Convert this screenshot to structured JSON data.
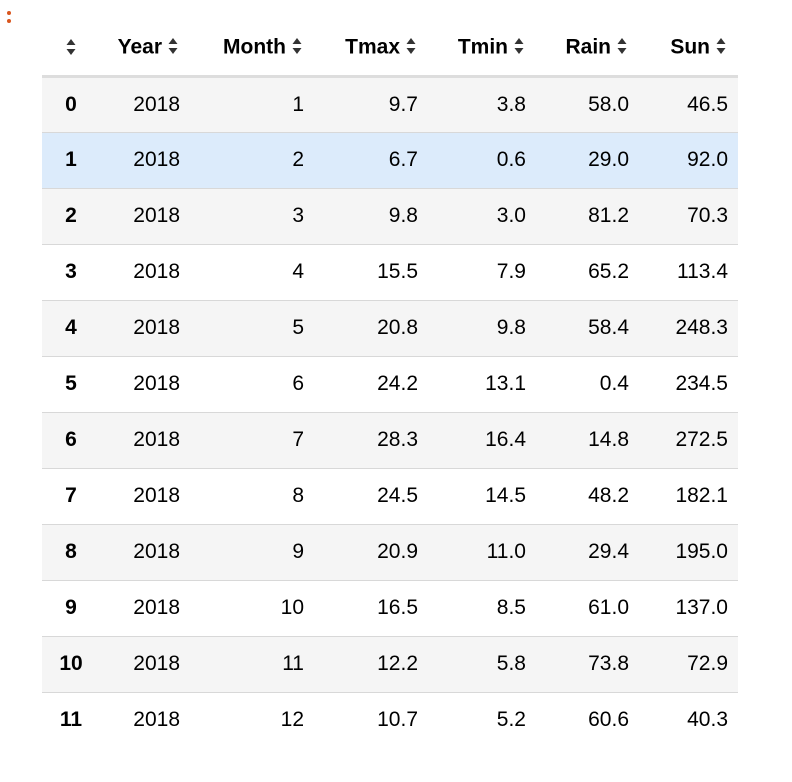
{
  "cell_menu_icon": "vertical-ellipsis-icon",
  "accent_color": "#d9561e",
  "hover_row_color": "#dcebfb",
  "sort_icon": "sort-updown-icon",
  "columns": [
    "Year",
    "Month",
    "Tmax",
    "Tmin",
    "Rain",
    "Sun"
  ],
  "hovered_row": 1,
  "rows": [
    {
      "index": "0",
      "cells": [
        "2018",
        "1",
        "9.7",
        "3.8",
        "58.0",
        "46.5"
      ]
    },
    {
      "index": "1",
      "cells": [
        "2018",
        "2",
        "6.7",
        "0.6",
        "29.0",
        "92.0"
      ]
    },
    {
      "index": "2",
      "cells": [
        "2018",
        "3",
        "9.8",
        "3.0",
        "81.2",
        "70.3"
      ]
    },
    {
      "index": "3",
      "cells": [
        "2018",
        "4",
        "15.5",
        "7.9",
        "65.2",
        "113.4"
      ]
    },
    {
      "index": "4",
      "cells": [
        "2018",
        "5",
        "20.8",
        "9.8",
        "58.4",
        "248.3"
      ]
    },
    {
      "index": "5",
      "cells": [
        "2018",
        "6",
        "24.2",
        "13.1",
        "0.4",
        "234.5"
      ]
    },
    {
      "index": "6",
      "cells": [
        "2018",
        "7",
        "28.3",
        "16.4",
        "14.8",
        "272.5"
      ]
    },
    {
      "index": "7",
      "cells": [
        "2018",
        "8",
        "24.5",
        "14.5",
        "48.2",
        "182.1"
      ]
    },
    {
      "index": "8",
      "cells": [
        "2018",
        "9",
        "20.9",
        "11.0",
        "29.4",
        "195.0"
      ]
    },
    {
      "index": "9",
      "cells": [
        "2018",
        "10",
        "16.5",
        "8.5",
        "61.0",
        "137.0"
      ]
    },
    {
      "index": "10",
      "cells": [
        "2018",
        "11",
        "12.2",
        "5.8",
        "73.8",
        "72.9"
      ]
    },
    {
      "index": "11",
      "cells": [
        "2018",
        "12",
        "10.7",
        "5.2",
        "60.6",
        "40.3"
      ]
    }
  ]
}
